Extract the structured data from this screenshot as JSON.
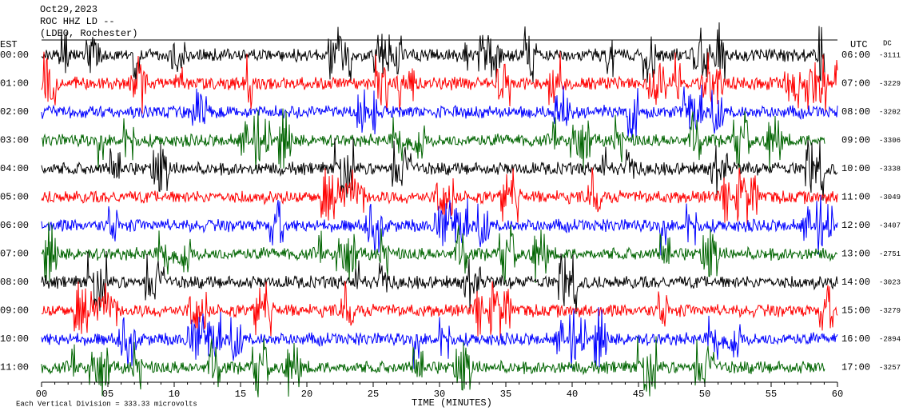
{
  "header": {
    "date": "Oct29,2023",
    "station": "ROC HHZ LD --",
    "network": "(LDEO, Rochester)"
  },
  "left_axis": {
    "title": "EST",
    "labels": [
      "00:00",
      "01:00",
      "02:00",
      "03:00",
      "04:00",
      "05:00",
      "06:00",
      "07:00",
      "08:00",
      "09:00",
      "10:00",
      "11:00"
    ]
  },
  "right_axis": {
    "title": "UTC",
    "labels": [
      "06:00",
      "07:00",
      "08:00",
      "09:00",
      "10:00",
      "11:00",
      "12:00",
      "13:00",
      "14:00",
      "15:00",
      "16:00",
      "17:00"
    ]
  },
  "dc": {
    "title": "DC",
    "values": [
      "-3111",
      "-3229",
      "-3202",
      "-3306",
      "-3338",
      "-3049",
      "-3407",
      "-2751",
      "-3023",
      "-3279",
      "-2894",
      "-3257"
    ]
  },
  "x_axis": {
    "title": "TIME (MINUTES)",
    "labels": [
      "00",
      "05",
      "10",
      "15",
      "20",
      "25",
      "30",
      "35",
      "40",
      "45",
      "50",
      "55",
      "60"
    ]
  },
  "footer": "Each Vertical Division =  333.33 microvolts",
  "trace_colors": [
    "#000000",
    "#ff0000",
    "#0000ff",
    "#006400"
  ]
}
